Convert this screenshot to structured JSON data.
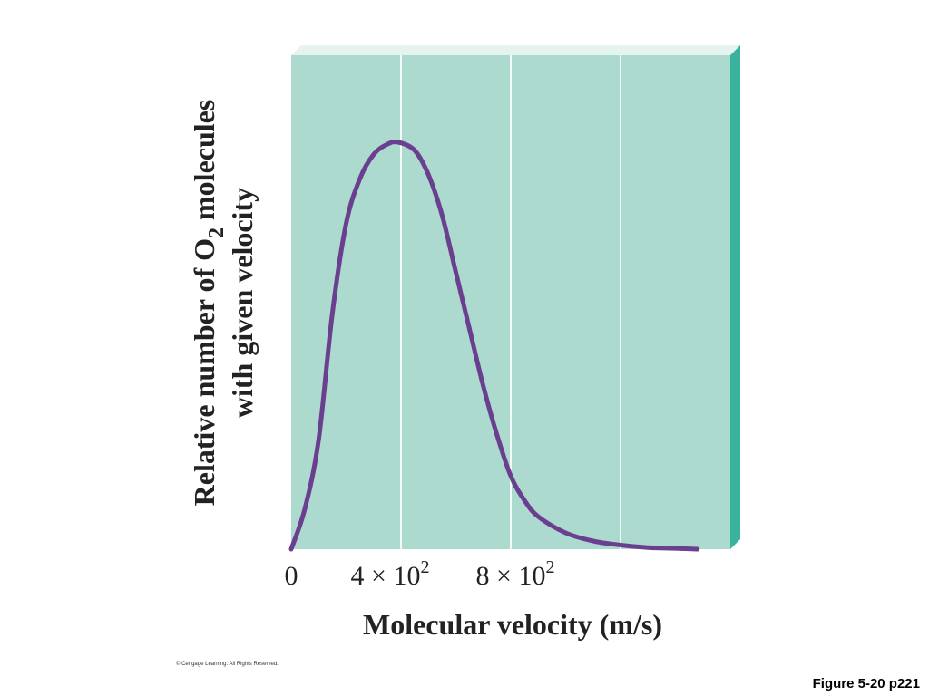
{
  "chart_data": {
    "type": "line",
    "xlabel": "Molecular velocity (m/s)",
    "ylabel": {
      "line1_before": "Relative number of O",
      "line1_sub": "2",
      "line1_after": " molecules",
      "line2": "with given velocity"
    },
    "xlim": [
      0,
      1600
    ],
    "ylim": [
      0,
      1
    ],
    "grid": true,
    "x_ticks": [
      {
        "value": 0,
        "label": "0",
        "sup": ""
      },
      {
        "value": 400,
        "label": "4 × 10",
        "sup": "2"
      },
      {
        "value": 800,
        "label": "8 × 10",
        "sup": "2"
      }
    ],
    "x_gridlines": [
      400,
      800,
      1200
    ],
    "series": [
      {
        "color": "#6b3f8f",
        "x": [
          0,
          50,
          100,
          150,
          200,
          250,
          300,
          350,
          390,
          450,
          500,
          550,
          600,
          650,
          700,
          750,
          800,
          850,
          900,
          1000,
          1100,
          1200,
          1300,
          1400,
          1480
        ],
        "y": [
          0,
          0.1,
          0.27,
          0.58,
          0.8,
          0.91,
          0.97,
          0.995,
          1.0,
          0.98,
          0.92,
          0.82,
          0.68,
          0.54,
          0.4,
          0.28,
          0.18,
          0.12,
          0.08,
          0.04,
          0.02,
          0.01,
          0.004,
          0.002,
          0.0
        ]
      }
    ],
    "colors": {
      "plot_background": "#acdacf",
      "gridline": "#f2faf7",
      "side_edge": "#39b39d",
      "top_edge": "#e6f4ef",
      "curve": "#6b3f8f"
    }
  },
  "footer": {
    "copyright": "© Cengage Learning. All Rights Reserved.",
    "figure_label": "Figure 5-20 p221"
  }
}
